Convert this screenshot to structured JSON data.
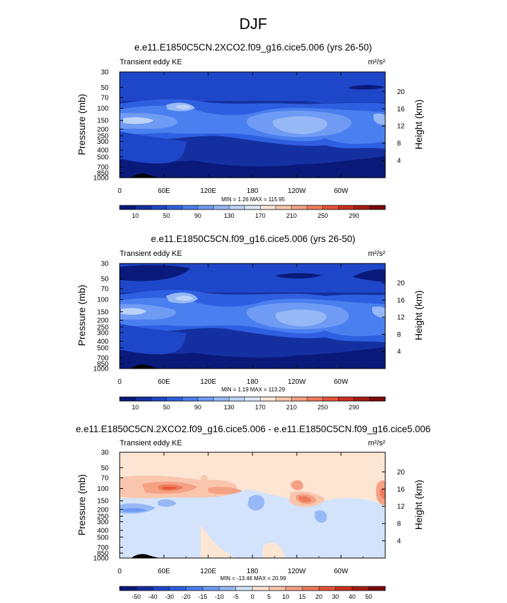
{
  "figure": {
    "title": "DJF"
  },
  "chart_data": [
    {
      "type": "heatmap",
      "title": "e.e11.E1850C5CN.2XCO2.f09_g16.cice5.006 (yrs 26-50)",
      "variable_label": "Transient eddy KE",
      "units": "m²/s²",
      "ylabel": "Pressure (mb)",
      "ylabel_right": "Height (km)",
      "x_ticks": [
        "0",
        "60E",
        "120E",
        "180",
        "120W",
        "60W"
      ],
      "y_ticks": [
        "30",
        "50",
        "70",
        "100",
        "150",
        "200",
        "250",
        "300",
        "400",
        "500",
        "700",
        "850",
        "1000"
      ],
      "height_ticks": [
        "20",
        "16",
        "12",
        "8",
        "4"
      ],
      "stats": "MIN =   1.26  MAX = 115.95",
      "colorbar_labels": [
        "10",
        "50",
        "90",
        "130",
        "170",
        "210",
        "250",
        "290"
      ],
      "colorbar_colors": [
        "#0a1a7a",
        "#1430a0",
        "#1e46c8",
        "#2e5fe0",
        "#4a7ff0",
        "#6f9bf4",
        "#96b8f6",
        "#bcd4f8",
        "#dde8f8",
        "#fbe6da",
        "#f9c6ad",
        "#f5a184",
        "#ef7a5c",
        "#e55438",
        "#cc3020",
        "#a51c14",
        "#7a0a0a"
      ],
      "y_range_mb": [
        1000,
        30
      ],
      "max_value": 115.95,
      "min_value": 1.26
    },
    {
      "type": "heatmap",
      "title": "e.e11.E1850C5CN.f09_g16.cice5.006 (yrs 26-50)",
      "variable_label": "Transient eddy KE",
      "units": "m²/s²",
      "ylabel": "Pressure (mb)",
      "ylabel_right": "Height (km)",
      "x_ticks": [
        "0",
        "60E",
        "120E",
        "180",
        "120W",
        "60W"
      ],
      "y_ticks": [
        "30",
        "50",
        "70",
        "100",
        "150",
        "200",
        "250",
        "300",
        "400",
        "500",
        "700",
        "850",
        "1000"
      ],
      "height_ticks": [
        "20",
        "16",
        "12",
        "8",
        "4"
      ],
      "stats": "MIN =   1.19  MAX = 113.29",
      "colorbar_labels": [
        "10",
        "50",
        "90",
        "130",
        "170",
        "210",
        "250",
        "290"
      ],
      "colorbar_colors": [
        "#0a1a7a",
        "#1430a0",
        "#1e46c8",
        "#2e5fe0",
        "#4a7ff0",
        "#6f9bf4",
        "#96b8f6",
        "#bcd4f8",
        "#dde8f8",
        "#fbe6da",
        "#f9c6ad",
        "#f5a184",
        "#ef7a5c",
        "#e55438",
        "#cc3020",
        "#a51c14",
        "#7a0a0a"
      ],
      "y_range_mb": [
        1000,
        30
      ],
      "max_value": 113.29,
      "min_value": 1.19
    },
    {
      "type": "heatmap",
      "title": "e.e11.E1850C5CN.2XCO2.f09_g16.cice5.006 - e.e11.E1850C5CN.f09_g16.cice5.006",
      "variable_label": "Transient eddy KE",
      "units": "m²/s²",
      "ylabel": "Pressure (mb)",
      "ylabel_right": "Height (km)",
      "x_ticks": [
        "0",
        "60E",
        "120E",
        "180",
        "120W",
        "60W"
      ],
      "y_ticks": [
        "30",
        "50",
        "70",
        "100",
        "150",
        "200",
        "250",
        "300",
        "400",
        "500",
        "700",
        "850",
        "1000"
      ],
      "height_ticks": [
        "20",
        "16",
        "12",
        "8",
        "4"
      ],
      "stats": "MIN = -13.46  MAX =  20.99",
      "colorbar_labels": [
        "-50",
        "-40",
        "-30",
        "-20",
        "-15",
        "-10",
        "-5",
        "0",
        "5",
        "10",
        "15",
        "20",
        "30",
        "40",
        "50"
      ],
      "colorbar_colors": [
        "#0a1a7a",
        "#1430a0",
        "#1e46c8",
        "#2e5fe0",
        "#4a7ff0",
        "#6f9bf4",
        "#96b8f6",
        "#d2e3fb",
        "#fde5d4",
        "#f9c6ad",
        "#f5a184",
        "#ef7a5c",
        "#e55438",
        "#cc3020",
        "#a51c14",
        "#7a0a0a"
      ],
      "y_range_mb": [
        1000,
        30
      ],
      "max_value": 20.99,
      "min_value": -13.46
    }
  ]
}
